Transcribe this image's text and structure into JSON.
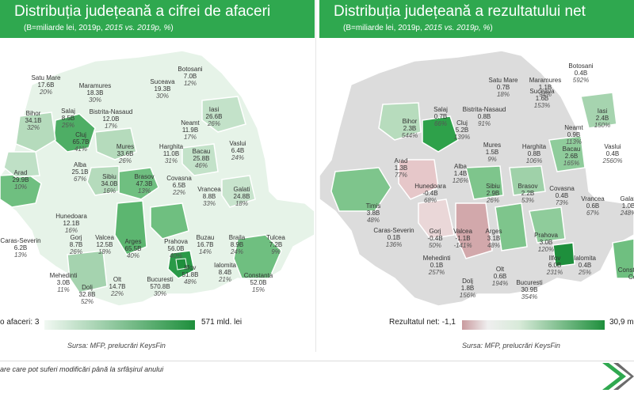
{
  "left": {
    "title": "Distribuția județeană a cifrei de afaceri",
    "subtitle_a": "(B=miliarde lei, 2019p, ",
    "subtitle_b": "2015 vs. 2019p, %",
    "subtitle_c": ")",
    "legend_min": "o afaceri: 3",
    "legend_max": "571 mld. lei",
    "source": "Sursa: MFP, prelucrări KeysFin",
    "colors": {
      "low": "#f1f8f2",
      "high": "#1e8f3c"
    },
    "counties": [
      {
        "name": "Satu Mare",
        "value": "17.6B",
        "pct": "20%"
      },
      {
        "name": "Maramures",
        "value": "18.3B",
        "pct": "30%"
      },
      {
        "name": "Botosani",
        "value": "7.0B",
        "pct": "12%"
      },
      {
        "name": "Suceava",
        "value": "19.3B",
        "pct": "30%"
      },
      {
        "name": "Salaj",
        "value": "8.5B",
        "pct": "25%"
      },
      {
        "name": "Bistrita-Nasaud",
        "value": "12.0B",
        "pct": "17%"
      },
      {
        "name": "Iasi",
        "value": "26.6B",
        "pct": "26%"
      },
      {
        "name": "Bihor",
        "value": "34.1B",
        "pct": "32%"
      },
      {
        "name": "Neamt",
        "value": "11.9B",
        "pct": "17%"
      },
      {
        "name": "Cluj",
        "value": "65.7B",
        "pct": "41%"
      },
      {
        "name": "Mures",
        "value": "33.6B",
        "pct": "26%"
      },
      {
        "name": "Harghita",
        "value": "11.0B",
        "pct": "31%"
      },
      {
        "name": "Vaslui",
        "value": "6.4B",
        "pct": "24%"
      },
      {
        "name": "Bacau",
        "value": "25.8B",
        "pct": "46%"
      },
      {
        "name": "Arad",
        "value": "29.9B",
        "pct": "10%"
      },
      {
        "name": "Alba",
        "value": "25.1B",
        "pct": "67%"
      },
      {
        "name": "Sibiu",
        "value": "34.0B",
        "pct": "16%"
      },
      {
        "name": "Brasov",
        "value": "47.3B",
        "pct": "13%"
      },
      {
        "name": "Covasna",
        "value": "6.5B",
        "pct": "22%"
      },
      {
        "name": "Vrancea",
        "value": "8.8B",
        "pct": "33%"
      },
      {
        "name": "Galati",
        "value": "24.8B",
        "pct": "18%"
      },
      {
        "name": "Hunedoara",
        "value": "12.1B",
        "pct": "16%"
      },
      {
        "name": "Caras-Severin",
        "value": "6.2B",
        "pct": "13%"
      },
      {
        "name": "Gorj",
        "value": "8.7B",
        "pct": "26%"
      },
      {
        "name": "Valcea",
        "value": "12.5B",
        "pct": "18%"
      },
      {
        "name": "Arges",
        "value": "65.5B",
        "pct": "40%"
      },
      {
        "name": "Prahova",
        "value": "56.0B",
        "pct": "40%"
      },
      {
        "name": "Buzau",
        "value": "16.7B",
        "pct": "14%"
      },
      {
        "name": "Braila",
        "value": "8.9B",
        "pct": "24%"
      },
      {
        "name": "Tulcea",
        "value": "7.2B",
        "pct": "9%"
      },
      {
        "name": "Mehedinti",
        "value": "3.0B",
        "pct": "11%"
      },
      {
        "name": "Olt",
        "value": "14.7B",
        "pct": "22%"
      },
      {
        "name": "Dolj",
        "value": "32.8B",
        "pct": "52%"
      },
      {
        "name": "Bucuresti",
        "value": "570.8B",
        "pct": "30%"
      },
      {
        "name": "Ilfov",
        "value": "51.8B",
        "pct": "48%"
      },
      {
        "name": "Ialomita",
        "value": "8.4B",
        "pct": "21%"
      },
      {
        "name": "Constanta",
        "value": "52.0B",
        "pct": "15%"
      }
    ]
  },
  "right": {
    "title": "Distribuția județeană a rezultatului net",
    "subtitle_a": "(B=miliarde lei, 2019p, ",
    "subtitle_b": "2015 vs. 2019p, %",
    "subtitle_c": ")",
    "legend_min": "Rezultatul net: -1,1",
    "legend_max": "30,9 m",
    "source": "Sursa: MFP, prelucrări KeysFin",
    "colors": {
      "neg": "#c99a9e",
      "mid": "#efefef",
      "high": "#1e8f3c"
    },
    "counties": [
      {
        "name": "Botosani",
        "value": "0.4B",
        "pct": "592%"
      },
      {
        "name": "Maramures",
        "value": "1.1B",
        "pct": "94%"
      },
      {
        "name": "Satu Mare",
        "value": "0.7B",
        "pct": "18%"
      },
      {
        "name": "Suceava",
        "value": "1.6B",
        "pct": "153%"
      },
      {
        "name": "Salaj",
        "value": "0.7B",
        "pct": "66%"
      },
      {
        "name": "Bistrita-Nasaud",
        "value": "0.8B",
        "pct": "91%"
      },
      {
        "name": "Iasi",
        "value": "2.4B",
        "pct": "150%"
      },
      {
        "name": "Bihor",
        "value": "2.3B",
        "pct": "544%"
      },
      {
        "name": "Cluj",
        "value": "5.2B",
        "pct": "139%"
      },
      {
        "name": "Neamt",
        "value": "0.9B",
        "pct": "113%"
      },
      {
        "name": "Mures",
        "value": "1.5B",
        "pct": "9%"
      },
      {
        "name": "Harghita",
        "value": "0.8B",
        "pct": "106%"
      },
      {
        "name": "Bacau",
        "value": "2.6B",
        "pct": "165%"
      },
      {
        "name": "Vaslui",
        "value": "0.4B",
        "pct": "2560%"
      },
      {
        "name": "Arad",
        "value": "1.3B",
        "pct": "77%"
      },
      {
        "name": "Alba",
        "value": "1.4B",
        "pct": "126%"
      },
      {
        "name": "Hunedoara",
        "value": "-0.4B",
        "pct": "68%"
      },
      {
        "name": "Sibiu",
        "value": "2.9B",
        "pct": "26%"
      },
      {
        "name": "Brasov",
        "value": "2.2B",
        "pct": "53%"
      },
      {
        "name": "Covasna",
        "value": "0.4B",
        "pct": "73%"
      },
      {
        "name": "Vrancea",
        "value": "0.6B",
        "pct": "67%"
      },
      {
        "name": "Galati",
        "value": "1.0B",
        "pct": "248%"
      },
      {
        "name": "Timis",
        "value": "3.8B",
        "pct": "48%"
      },
      {
        "name": "Caras-Severin",
        "value": "0.1B",
        "pct": "136%"
      },
      {
        "name": "Gorj",
        "value": "-0.4B",
        "pct": "50%"
      },
      {
        "name": "Valcea",
        "value": "-1.1B",
        "pct": "-141%"
      },
      {
        "name": "Arges",
        "value": "3.1B",
        "pct": "48%"
      },
      {
        "name": "Prahova",
        "value": "3.0B",
        "pct": "120%"
      },
      {
        "name": "Mehedinti",
        "value": "0.1B",
        "pct": "257%"
      },
      {
        "name": "Olt",
        "value": "0.6B",
        "pct": "194%"
      },
      {
        "name": "Dolj",
        "value": "1.8B",
        "pct": "156%"
      },
      {
        "name": "Bucuresti",
        "value": "30.9B",
        "pct": "354%"
      },
      {
        "name": "Ilfov",
        "value": "6.0B",
        "pct": "231%"
      },
      {
        "name": "Ialomita",
        "value": "0.4B",
        "pct": "25%"
      },
      {
        "name": "Constanta",
        "value": "Co",
        "pct": ""
      }
    ]
  },
  "footer": {
    "note": "are care pot suferi modificări până la srfâșirul anului"
  }
}
